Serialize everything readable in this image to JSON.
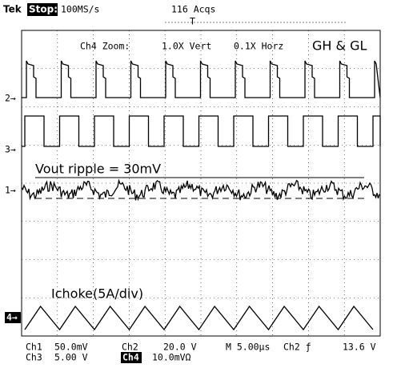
{
  "header": {
    "brand": "Tek",
    "state": "Stop:",
    "rate": "100MS/s",
    "acqs": "116 Acqs",
    "trigger": "T"
  },
  "zoom": {
    "label": "Ch4 Zoom:",
    "vert": "1.0X Vert",
    "horz": "0.1X Horz"
  },
  "signal_label": "GH & GL",
  "channel_markers": {
    "ch2": "2→",
    "ch3": "3→",
    "ch1": "1→",
    "ch4": "4→"
  },
  "annotations": {
    "ripple": "Vout ripple = 30mV",
    "ichoke": "Ichoke(5A/div)"
  },
  "status": {
    "ch1": "Ch1",
    "ch1_scale": "50.0mV",
    "ch2": "Ch2",
    "ch2_scale": "20.0 V",
    "timebase": "M 5.00µs",
    "trig_src": "Ch2 ƒ",
    "trig_level": "13.6 V",
    "ch3": "Ch3",
    "ch3_scale": "5.00 V",
    "ch4": "Ch4",
    "ch4_scale": "10.0mVΩ"
  }
}
